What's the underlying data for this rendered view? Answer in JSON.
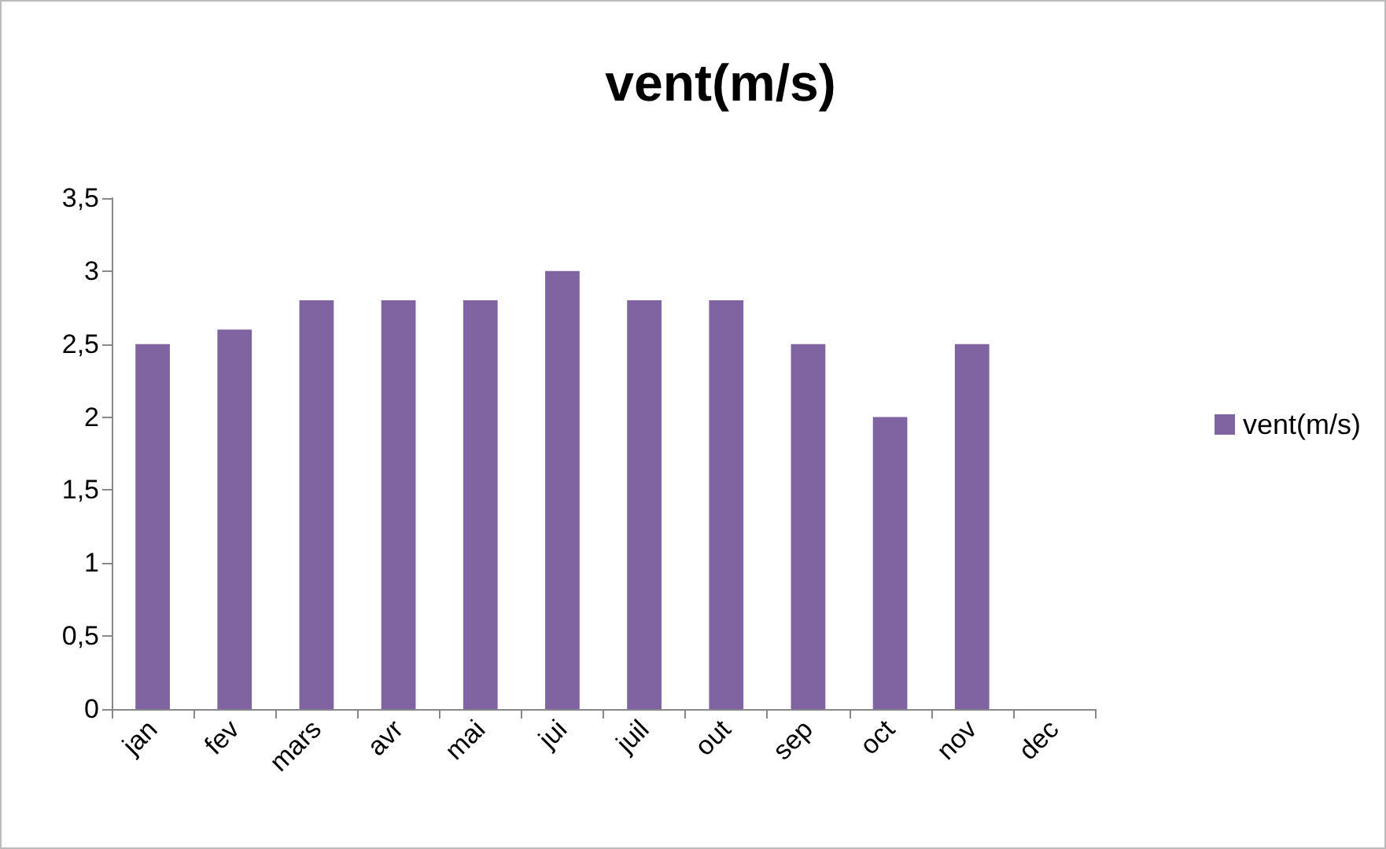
{
  "chart_data": {
    "type": "bar",
    "title": "vent(m/s)",
    "categories": [
      "jan",
      "fev",
      "mars",
      "avr",
      "mai",
      "jui",
      "juil",
      "out",
      "sep",
      "oct",
      "nov",
      "dec"
    ],
    "series": [
      {
        "name": "vent(m/s)",
        "color": "#8064a2",
        "values": [
          2.5,
          2.6,
          2.8,
          2.8,
          2.8,
          3.0,
          2.8,
          2.8,
          2.5,
          2.0,
          2.5,
          null
        ]
      }
    ],
    "ylim": [
      0,
      3.5
    ],
    "yticks": [
      0,
      {
        "value": 0.5,
        "label": "0,5"
      },
      1,
      {
        "value": 1.5,
        "label": "1,5"
      },
      2,
      {
        "value": 2.5,
        "label": "2,5"
      },
      3,
      {
        "value": 3.5,
        "label": "3,5"
      }
    ],
    "grid": false,
    "legend": "right"
  }
}
